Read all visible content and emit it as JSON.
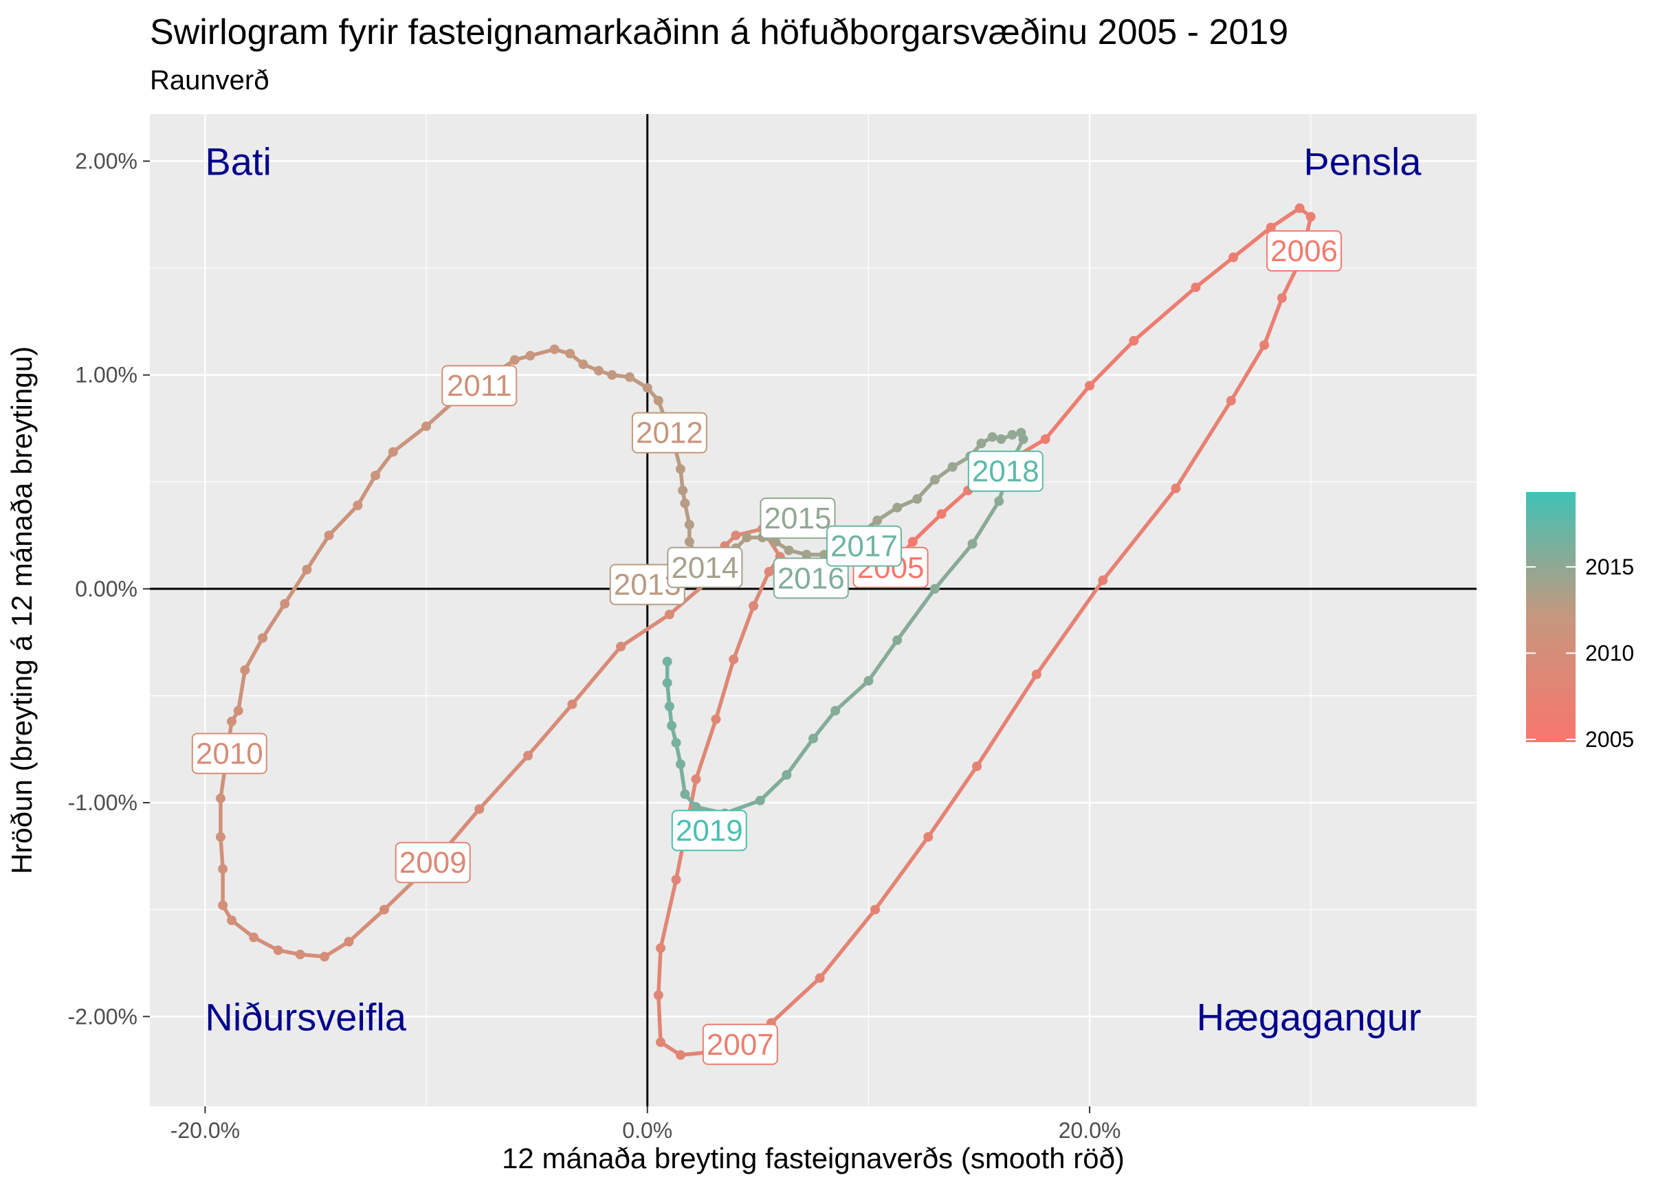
{
  "chart_data": {
    "type": "line",
    "title": "Swirlogram fyrir fasteignamarkaðinn á höfuðborgarsvæðinu 2005 - 2019",
    "subtitle": "Raunverð",
    "xlabel": "12 mánaða breyting fasteignaverðs (smooth röð)",
    "ylabel": "Hröðun (breyting á 12 mánaða breytingu)",
    "xlim": [
      -22.5,
      37.5
    ],
    "ylim": [
      -2.42,
      2.22
    ],
    "x_ticks": [
      -20,
      0,
      20
    ],
    "x_tick_labels": [
      "-20.0%",
      "0.0%",
      "20.0%"
    ],
    "y_ticks": [
      -2,
      -1,
      0,
      1,
      2
    ],
    "y_tick_labels": [
      "-2.00%",
      "-1.00%",
      "0.00%",
      "1.00%",
      "2.00%"
    ],
    "grid": true,
    "reference_lines": {
      "x": 0,
      "y": 0
    },
    "quadrant_labels": {
      "top_left": "Bati",
      "top_right": "Þensla",
      "bottom_left": "Niðursveifla",
      "bottom_right": "Hægagangur"
    },
    "legend": {
      "placement": "right",
      "type": "colorbar",
      "labels": [
        "2015",
        "2010",
        "2005"
      ],
      "label_values": [
        2015,
        2010,
        2005
      ],
      "range": [
        2005,
        2019.5
      ],
      "colors": [
        "#F8766D",
        "#C6977D",
        "#40C2B5"
      ]
    },
    "path": [
      {
        "year": 2005.92,
        "x": 11.0,
        "y": 0.1
      },
      {
        "year": 2006.0,
        "x": 12.0,
        "y": 0.22
      },
      {
        "year": 2006.08,
        "x": 13.3,
        "y": 0.35
      },
      {
        "year": 2006.17,
        "x": 14.5,
        "y": 0.46
      },
      {
        "year": 2006.25,
        "x": 15.6,
        "y": 0.55
      },
      {
        "year": 2006.33,
        "x": 16.7,
        "y": 0.62
      },
      {
        "year": 2006.42,
        "x": 18.0,
        "y": 0.7
      },
      {
        "year": 2006.5,
        "x": 20.0,
        "y": 0.95
      },
      {
        "year": 2006.58,
        "x": 22.0,
        "y": 1.16
      },
      {
        "year": 2006.67,
        "x": 24.8,
        "y": 1.41
      },
      {
        "year": 2006.75,
        "x": 26.5,
        "y": 1.55
      },
      {
        "year": 2006.83,
        "x": 28.2,
        "y": 1.69
      },
      {
        "year": 2006.92,
        "x": 29.5,
        "y": 1.78
      },
      {
        "year": 2007.0,
        "x": 30.0,
        "y": 1.74
      },
      {
        "year": 2007.08,
        "x": 29.6,
        "y": 1.55
      },
      {
        "year": 2007.17,
        "x": 28.7,
        "y": 1.36
      },
      {
        "year": 2007.25,
        "x": 27.9,
        "y": 1.14
      },
      {
        "year": 2007.33,
        "x": 26.4,
        "y": 0.88
      },
      {
        "year": 2007.42,
        "x": 23.9,
        "y": 0.47
      },
      {
        "year": 2007.5,
        "x": 20.6,
        "y": 0.04
      },
      {
        "year": 2007.58,
        "x": 17.6,
        "y": -0.4
      },
      {
        "year": 2007.67,
        "x": 14.9,
        "y": -0.83
      },
      {
        "year": 2007.75,
        "x": 12.7,
        "y": -1.16
      },
      {
        "year": 2007.83,
        "x": 10.3,
        "y": -1.5
      },
      {
        "year": 2007.92,
        "x": 7.8,
        "y": -1.82
      },
      {
        "year": 2008.0,
        "x": 5.6,
        "y": -2.03
      },
      {
        "year": 2008.08,
        "x": 3.5,
        "y": -2.16
      },
      {
        "year": 2008.17,
        "x": 1.5,
        "y": -2.18
      },
      {
        "year": 2008.25,
        "x": 0.6,
        "y": -2.12
      },
      {
        "year": 2008.33,
        "x": 0.5,
        "y": -1.9
      },
      {
        "year": 2008.42,
        "x": 0.6,
        "y": -1.68
      },
      {
        "year": 2008.5,
        "x": 1.3,
        "y": -1.36
      },
      {
        "year": 2008.58,
        "x": 2.2,
        "y": -0.89
      },
      {
        "year": 2008.67,
        "x": 3.1,
        "y": -0.61
      },
      {
        "year": 2008.75,
        "x": 3.9,
        "y": -0.33
      },
      {
        "year": 2008.83,
        "x": 4.8,
        "y": -0.08
      },
      {
        "year": 2008.92,
        "x": 5.5,
        "y": 0.08
      },
      {
        "year": 2009.0,
        "x": 6.0,
        "y": 0.15
      },
      {
        "year": 2009.08,
        "x": 5.2,
        "y": 0.28
      },
      {
        "year": 2009.17,
        "x": 4.0,
        "y": 0.25
      },
      {
        "year": 2009.25,
        "x": 3.5,
        "y": 0.2
      },
      {
        "year": 2009.33,
        "x": 3.2,
        "y": 0.12
      },
      {
        "year": 2009.42,
        "x": 2.8,
        "y": 0.04
      },
      {
        "year": 2009.5,
        "x": 1.0,
        "y": -0.12
      },
      {
        "year": 2009.58,
        "x": -1.2,
        "y": -0.27
      },
      {
        "year": 2009.67,
        "x": -3.4,
        "y": -0.54
      },
      {
        "year": 2009.75,
        "x": -5.4,
        "y": -0.78
      },
      {
        "year": 2009.83,
        "x": -7.6,
        "y": -1.03
      },
      {
        "year": 2009.92,
        "x": -9.5,
        "y": -1.26
      },
      {
        "year": 2010.0,
        "x": -11.9,
        "y": -1.5
      },
      {
        "year": 2010.08,
        "x": -13.5,
        "y": -1.65
      },
      {
        "year": 2010.17,
        "x": -14.6,
        "y": -1.72
      },
      {
        "year": 2010.25,
        "x": -15.7,
        "y": -1.71
      },
      {
        "year": 2010.33,
        "x": -16.7,
        "y": -1.69
      },
      {
        "year": 2010.42,
        "x": -17.8,
        "y": -1.63
      },
      {
        "year": 2010.5,
        "x": -18.8,
        "y": -1.55
      },
      {
        "year": 2010.58,
        "x": -19.2,
        "y": -1.48
      },
      {
        "year": 2010.67,
        "x": -19.2,
        "y": -1.31
      },
      {
        "year": 2010.75,
        "x": -19.3,
        "y": -1.16
      },
      {
        "year": 2010.83,
        "x": -19.3,
        "y": -0.98
      },
      {
        "year": 2010.92,
        "x": -18.8,
        "y": -0.62
      },
      {
        "year": 2011.0,
        "x": -18.5,
        "y": -0.57
      },
      {
        "year": 2011.08,
        "x": -18.2,
        "y": -0.38
      },
      {
        "year": 2011.17,
        "x": -17.4,
        "y": -0.23
      },
      {
        "year": 2011.25,
        "x": -16.4,
        "y": -0.07
      },
      {
        "year": 2011.33,
        "x": -15.4,
        "y": 0.09
      },
      {
        "year": 2011.42,
        "x": -14.4,
        "y": 0.25
      },
      {
        "year": 2011.5,
        "x": -13.1,
        "y": 0.39
      },
      {
        "year": 2011.58,
        "x": -12.3,
        "y": 0.53
      },
      {
        "year": 2011.67,
        "x": -11.5,
        "y": 0.64
      },
      {
        "year": 2011.75,
        "x": -10.0,
        "y": 0.76
      },
      {
        "year": 2011.83,
        "x": -8.6,
        "y": 0.89
      },
      {
        "year": 2011.92,
        "x": -7.2,
        "y": 0.99
      },
      {
        "year": 2012.0,
        "x": -6.0,
        "y": 1.07
      },
      {
        "year": 2012.08,
        "x": -5.3,
        "y": 1.09
      },
      {
        "year": 2012.17,
        "x": -4.2,
        "y": 1.12
      },
      {
        "year": 2012.25,
        "x": -3.5,
        "y": 1.1
      },
      {
        "year": 2012.33,
        "x": -2.9,
        "y": 1.05
      },
      {
        "year": 2012.42,
        "x": -2.2,
        "y": 1.02
      },
      {
        "year": 2012.5,
        "x": -1.6,
        "y": 1.0
      },
      {
        "year": 2012.58,
        "x": -0.8,
        "y": 0.99
      },
      {
        "year": 2012.67,
        "x": 0.0,
        "y": 0.94
      },
      {
        "year": 2012.75,
        "x": 0.5,
        "y": 0.88
      },
      {
        "year": 2012.83,
        "x": 1.2,
        "y": 0.68
      },
      {
        "year": 2012.92,
        "x": 1.5,
        "y": 0.56
      },
      {
        "year": 2013.0,
        "x": 1.6,
        "y": 0.46
      },
      {
        "year": 2013.08,
        "x": 1.7,
        "y": 0.4
      },
      {
        "year": 2013.17,
        "x": 1.9,
        "y": 0.3
      },
      {
        "year": 2013.25,
        "x": 1.9,
        "y": 0.22
      },
      {
        "year": 2013.33,
        "x": 2.2,
        "y": 0.15
      },
      {
        "year": 2013.42,
        "x": 2.8,
        "y": 0.13
      },
      {
        "year": 2013.5,
        "x": 3.5,
        "y": 0.15
      },
      {
        "year": 2013.58,
        "x": 4.0,
        "y": 0.19
      },
      {
        "year": 2013.67,
        "x": 4.5,
        "y": 0.24
      },
      {
        "year": 2013.75,
        "x": 5.2,
        "y": 0.24
      },
      {
        "year": 2013.83,
        "x": 5.8,
        "y": 0.22
      },
      {
        "year": 2013.92,
        "x": 6.4,
        "y": 0.18
      },
      {
        "year": 2014.0,
        "x": 7.2,
        "y": 0.16
      },
      {
        "year": 2014.08,
        "x": 8.0,
        "y": 0.16
      },
      {
        "year": 2014.17,
        "x": 8.7,
        "y": 0.19
      },
      {
        "year": 2014.25,
        "x": 9.4,
        "y": 0.24
      },
      {
        "year": 2014.33,
        "x": 10.4,
        "y": 0.32
      },
      {
        "year": 2014.42,
        "x": 11.3,
        "y": 0.38
      },
      {
        "year": 2014.5,
        "x": 12.2,
        "y": 0.42
      },
      {
        "year": 2014.58,
        "x": 13.0,
        "y": 0.51
      },
      {
        "year": 2014.67,
        "x": 13.8,
        "y": 0.57
      },
      {
        "year": 2014.75,
        "x": 14.6,
        "y": 0.62
      },
      {
        "year": 2014.83,
        "x": 15.1,
        "y": 0.68
      },
      {
        "year": 2014.92,
        "x": 15.6,
        "y": 0.71
      },
      {
        "year": 2015.0,
        "x": 16.0,
        "y": 0.7
      },
      {
        "year": 2015.08,
        "x": 16.5,
        "y": 0.72
      },
      {
        "year": 2015.17,
        "x": 16.9,
        "y": 0.73
      },
      {
        "year": 2015.25,
        "x": 17.0,
        "y": 0.7
      },
      {
        "year": 2015.33,
        "x": 16.5,
        "y": 0.6
      },
      {
        "year": 2015.42,
        "x": 15.9,
        "y": 0.41
      },
      {
        "year": 2015.5,
        "x": 14.7,
        "y": 0.21
      },
      {
        "year": 2015.58,
        "x": 13.0,
        "y": 0.0
      },
      {
        "year": 2015.67,
        "x": 11.3,
        "y": -0.24
      },
      {
        "year": 2015.75,
        "x": 10.0,
        "y": -0.43
      },
      {
        "year": 2015.83,
        "x": 8.5,
        "y": -0.57
      },
      {
        "year": 2015.92,
        "x": 7.5,
        "y": -0.7
      },
      {
        "year": 2016.0,
        "x": 6.3,
        "y": -0.87
      },
      {
        "year": 2016.08,
        "x": 5.1,
        "y": -0.99
      },
      {
        "year": 2016.17,
        "x": 3.5,
        "y": -1.05
      },
      {
        "year": 2016.25,
        "x": 2.2,
        "y": -1.02
      },
      {
        "year": 2016.33,
        "x": 1.7,
        "y": -0.96
      },
      {
        "year": 2016.42,
        "x": 1.5,
        "y": -0.82
      },
      {
        "year": 2016.5,
        "x": 1.3,
        "y": -0.72
      },
      {
        "year": 2016.58,
        "x": 1.1,
        "y": -0.64
      },
      {
        "year": 2016.67,
        "x": 1.0,
        "y": -0.55
      },
      {
        "year": 2016.75,
        "x": 0.9,
        "y": -0.44
      },
      {
        "year": 2016.83,
        "x": 0.9,
        "y": -0.34
      }
    ],
    "year_labels": [
      {
        "text": "2005",
        "x": 11.0,
        "y": 0.1,
        "year": 2005
      },
      {
        "text": "2006",
        "x": 29.7,
        "y": 1.58,
        "year": 2006
      },
      {
        "text": "2007",
        "x": 4.2,
        "y": -2.13,
        "year": 2007
      },
      {
        "text": "2009",
        "x": -9.7,
        "y": -1.28,
        "year": 2009
      },
      {
        "text": "2010",
        "x": -18.9,
        "y": -0.77,
        "year": 2010
      },
      {
        "text": "2011",
        "x": -7.6,
        "y": 0.95,
        "year": 2011
      },
      {
        "text": "2012",
        "x": 1.0,
        "y": 0.73,
        "year": 2012
      },
      {
        "text": "2013",
        "x": 0.0,
        "y": 0.02,
        "year": 2013
      },
      {
        "text": "2014",
        "x": 2.6,
        "y": 0.1,
        "year": 2014
      },
      {
        "text": "2015",
        "x": 6.8,
        "y": 0.33,
        "year": 2015
      },
      {
        "text": "2016",
        "x": 7.4,
        "y": 0.05,
        "year": 2016
      },
      {
        "text": "2017",
        "x": 9.8,
        "y": 0.2,
        "year": 2017
      },
      {
        "text": "2018",
        "x": 16.2,
        "y": 0.55,
        "year": 2018
      },
      {
        "text": "2019",
        "x": 2.8,
        "y": -1.13,
        "year": 2019
      }
    ]
  }
}
